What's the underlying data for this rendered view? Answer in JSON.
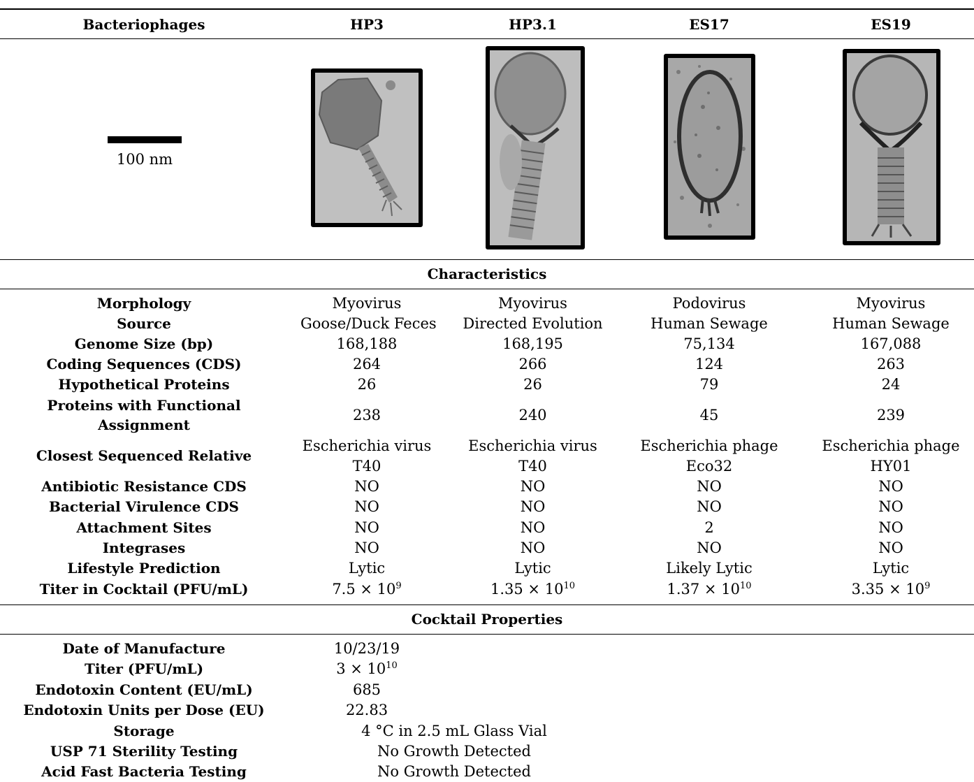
{
  "header": {
    "label": "Bacteriophages",
    "phages": [
      "HP3",
      "HP3.1",
      "ES17",
      "ES19"
    ]
  },
  "scale_bar": {
    "label": "100 nm"
  },
  "images": [
    {
      "phage": "HP3",
      "type": "electron-micrograph"
    },
    {
      "phage": "HP3.1",
      "type": "electron-micrograph"
    },
    {
      "phage": "ES17",
      "type": "electron-micrograph"
    },
    {
      "phage": "ES19",
      "type": "electron-micrograph"
    }
  ],
  "sections": {
    "characteristics": "Characteristics",
    "cocktail": "Cocktail Properties"
  },
  "characteristics": [
    {
      "label": "Morphology",
      "values": [
        "Myovirus",
        "Myovirus",
        "Podovirus",
        "Myovirus"
      ]
    },
    {
      "label": "Source",
      "values": [
        "Goose/Duck Feces",
        "Directed Evolution",
        "Human Sewage",
        "Human Sewage"
      ]
    },
    {
      "label": "Genome Size (bp)",
      "values": [
        "168,188",
        "168,195",
        "75,134",
        "167,088"
      ]
    },
    {
      "label": "Coding Sequences (CDS)",
      "values": [
        "264",
        "266",
        "124",
        "263"
      ]
    },
    {
      "label": "Hypothetical Proteins",
      "values": [
        "26",
        "26",
        "79",
        "24"
      ]
    },
    {
      "label": [
        "Proteins with Functional",
        "Assignment"
      ],
      "values": [
        "238",
        "240",
        "45",
        "239"
      ]
    },
    {
      "label": "Closest Sequenced Relative",
      "values": [
        [
          "Escherichia virus",
          "T40"
        ],
        [
          "Escherichia virus",
          "T40"
        ],
        [
          "Escherichia phage",
          "Eco32"
        ],
        [
          "Escherichia phage",
          "HY01"
        ]
      ]
    },
    {
      "label": "Antibiotic Resistance CDS",
      "values": [
        "NO",
        "NO",
        "NO",
        "NO"
      ]
    },
    {
      "label": "Bacterial Virulence CDS",
      "values": [
        "NO",
        "NO",
        "NO",
        "NO"
      ]
    },
    {
      "label": "Attachment Sites",
      "values": [
        "NO",
        "NO",
        "2",
        "NO"
      ]
    },
    {
      "label": "Integrases",
      "values": [
        "NO",
        "NO",
        "NO",
        "NO"
      ]
    },
    {
      "label": "Lifestyle Prediction",
      "values": [
        "Lytic",
        "Lytic",
        "Likely Lytic",
        "Lytic"
      ]
    }
  ],
  "titer": {
    "label": "Titer in Cocktail (PFU/mL)",
    "values": [
      {
        "mantissa": "7.5 × 10",
        "exp": "9"
      },
      {
        "mantissa": "1.35 × 10",
        "exp": "10"
      },
      {
        "mantissa": "1.37 × 10",
        "exp": "10"
      },
      {
        "mantissa": "3.35 × 10",
        "exp": "9"
      }
    ]
  },
  "cocktail": {
    "date_label": "Date of Manufacture",
    "date_value": "10/23/19",
    "titer_label": "Titer (PFU/mL)",
    "titer_mantissa": "3 × 10",
    "titer_exp": "10",
    "endotoxin_label": "Endotoxin Content (EU/mL)",
    "endotoxin_value": "685",
    "dose_label": "Endotoxin Units per Dose (EU)",
    "dose_value": "22.83",
    "storage_label": "Storage",
    "storage_value": "4 °C in 2.5 mL Glass Vial",
    "usp_label": "USP 71 Sterility Testing",
    "usp_value": "No Growth Detected",
    "afb_label": "Acid Fast Bacteria Testing",
    "afb_value": "No Growth Detected"
  }
}
